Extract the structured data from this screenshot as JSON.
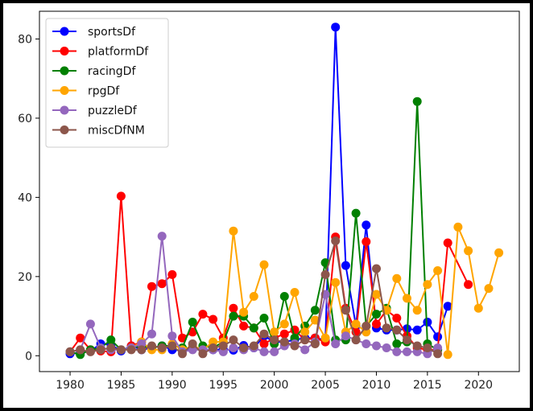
{
  "chart_data": {
    "type": "line",
    "title": "",
    "xlabel": "",
    "ylabel": "",
    "xlim": [
      1977,
      2024
    ],
    "ylim": [
      -4,
      87
    ],
    "xticks": [
      1980,
      1985,
      1990,
      1995,
      2000,
      2005,
      2010,
      2015,
      2020
    ],
    "yticks": [
      0,
      20,
      40,
      60,
      80
    ],
    "grid": false,
    "legend_position": "top-left",
    "series": [
      {
        "name": "sportsDf",
        "color": "#0000ff",
        "x": [
          1980,
          1981,
          1982,
          1983,
          1984,
          1985,
          1986,
          1987,
          1988,
          1989,
          1990,
          1991,
          1992,
          1993,
          1994,
          1995,
          1996,
          1997,
          1998,
          1999,
          2000,
          2001,
          2002,
          2003,
          2004,
          2005,
          2006,
          2007,
          2008,
          2009,
          2010,
          2011,
          2012,
          2013,
          2014,
          2015,
          2016,
          2017
        ],
        "y": [
          0.5,
          0.7,
          1.2,
          3.0,
          2.8,
          1.2,
          2.5,
          1.5,
          2.0,
          2.5,
          1.5,
          1.3,
          2.0,
          1.6,
          1.5,
          1.6,
          1.4,
          2.6,
          2.0,
          5.0,
          3.5,
          3.5,
          4.0,
          4.5,
          4.5,
          4.0,
          83.0,
          22.8,
          7.5,
          33.0,
          7.0,
          6.5,
          6.5,
          6.8,
          6.5,
          8.5,
          4.8,
          12.5
        ]
      },
      {
        "name": "platformDf",
        "color": "#ff0000",
        "x": [
          1980,
          1981,
          1982,
          1983,
          1984,
          1985,
          1986,
          1987,
          1988,
          1989,
          1990,
          1991,
          1992,
          1993,
          1994,
          1995,
          1996,
          1997,
          1998,
          1999,
          2000,
          2001,
          2002,
          2003,
          2004,
          2005,
          2006,
          2007,
          2008,
          2009,
          2010,
          2011,
          2012,
          2013,
          2014,
          2015,
          2016,
          2017,
          2019
        ],
        "y": [
          1.0,
          4.5,
          1.5,
          1.2,
          1.0,
          40.3,
          2.5,
          3.5,
          17.5,
          18.2,
          20.5,
          4.5,
          6.0,
          10.5,
          9.2,
          4.5,
          12.0,
          7.5,
          7.0,
          3.0,
          4.5,
          5.5,
          6.5,
          4.0,
          4.5,
          3.5,
          30.0,
          12.0,
          6.0,
          28.8,
          8.0,
          11.5,
          9.5,
          5.0,
          2.0,
          1.5,
          1.5,
          28.5,
          18.0
        ]
      },
      {
        "name": "racingDf",
        "color": "#008000",
        "x": [
          1980,
          1981,
          1982,
          1983,
          1984,
          1985,
          1986,
          1987,
          1988,
          1989,
          1990,
          1991,
          1992,
          1993,
          1994,
          1995,
          1996,
          1997,
          1998,
          1999,
          2000,
          2001,
          2002,
          2003,
          2004,
          2005,
          2006,
          2007,
          2008,
          2009,
          2010,
          2011,
          2012,
          2013,
          2014,
          2015,
          2016
        ],
        "y": [
          1.0,
          0.3,
          1.5,
          2.0,
          4.0,
          1.5,
          2.0,
          2.5,
          2.0,
          2.5,
          2.5,
          2.0,
          8.5,
          2.5,
          2.0,
          3.5,
          10.0,
          10.0,
          7.0,
          9.5,
          3.0,
          15.0,
          4.5,
          7.5,
          11.5,
          23.5,
          4.0,
          4.0,
          36.0,
          7.5,
          10.5,
          12.0,
          3.0,
          3.5,
          64.2,
          3.0,
          1.5
        ]
      },
      {
        "name": "rpgDf",
        "color": "#ffa500",
        "x": [
          1986,
          1987,
          1988,
          1989,
          1990,
          1991,
          1992,
          1993,
          1994,
          1995,
          1996,
          1997,
          1998,
          1999,
          2000,
          2001,
          2002,
          2003,
          2004,
          2005,
          2006,
          2007,
          2008,
          2009,
          2010,
          2011,
          2012,
          2013,
          2014,
          2015,
          2016,
          2017,
          2018,
          2019,
          2020,
          2021,
          2022
        ],
        "y": [
          2.0,
          3.5,
          1.5,
          1.5,
          3.0,
          1.5,
          2.5,
          1.5,
          3.5,
          3.5,
          31.5,
          11.0,
          15.0,
          23.0,
          6.0,
          8.0,
          16.0,
          6.0,
          9.0,
          4.5,
          18.5,
          6.0,
          8.0,
          6.0,
          15.5,
          11.5,
          19.5,
          14.5,
          11.5,
          18.0,
          21.5,
          0.3,
          32.5,
          26.5,
          12.0,
          17.0,
          26.0
        ]
      },
      {
        "name": "puzzleDf",
        "color": "#9467bd",
        "x": [
          1980,
          1981,
          1982,
          1983,
          1984,
          1985,
          1986,
          1987,
          1988,
          1989,
          1990,
          1991,
          1992,
          1993,
          1994,
          1995,
          1996,
          1997,
          1998,
          1999,
          2000,
          2001,
          2002,
          2003,
          2004,
          2005,
          2006,
          2007,
          2008,
          2009,
          2010,
          2011,
          2012,
          2013,
          2014,
          2015,
          2016
        ],
        "y": [
          1.0,
          1.5,
          8.0,
          2.0,
          1.5,
          1.5,
          2.0,
          3.0,
          5.5,
          30.2,
          5.0,
          1.0,
          1.5,
          1.5,
          1.5,
          1.0,
          2.0,
          1.5,
          2.0,
          1.0,
          1.0,
          2.5,
          3.0,
          1.5,
          3.5,
          15.5,
          3.0,
          5.0,
          4.0,
          3.0,
          2.5,
          2.0,
          1.0,
          1.0,
          1.0,
          0.5,
          2.0
        ]
      },
      {
        "name": "miscDfNM",
        "color": "#8c564b",
        "x": [
          1980,
          1981,
          1982,
          1983,
          1984,
          1985,
          1986,
          1987,
          1988,
          1989,
          1990,
          1991,
          1992,
          1993,
          1994,
          1995,
          1996,
          1997,
          1998,
          1999,
          2000,
          2001,
          2002,
          2003,
          2004,
          2005,
          2006,
          2007,
          2008,
          2009,
          2010,
          2011,
          2012,
          2013,
          2014,
          2015,
          2016
        ],
        "y": [
          1.0,
          1.5,
          1.0,
          1.5,
          2.0,
          1.5,
          1.5,
          1.5,
          2.5,
          2.0,
          2.5,
          0.5,
          3.0,
          0.5,
          2.0,
          2.5,
          4.0,
          2.0,
          2.5,
          5.5,
          4.0,
          3.5,
          2.5,
          4.0,
          3.0,
          20.5,
          29.0,
          11.5,
          4.0,
          7.5,
          22.0,
          7.0,
          6.5,
          4.0,
          2.5,
          2.0,
          0.5
        ]
      }
    ]
  }
}
